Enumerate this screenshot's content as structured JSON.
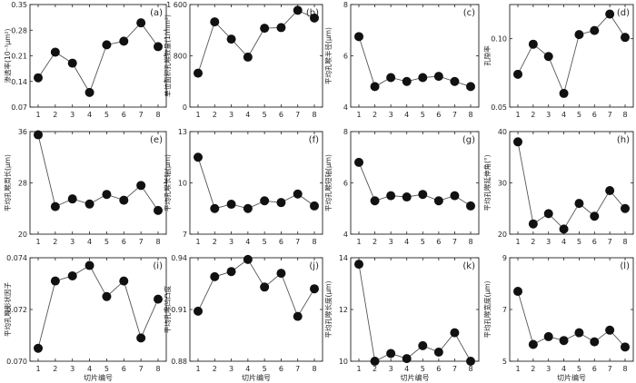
{
  "chart_data": [
    {
      "type": "line",
      "panel": "(a)",
      "ylabel": "渗透率(10⁻³μm²)",
      "xlabel": "切片编号",
      "x": [
        1,
        2,
        3,
        4,
        5,
        6,
        7,
        8
      ],
      "values": [
        0.15,
        0.22,
        0.19,
        0.11,
        0.24,
        0.25,
        0.3,
        0.235
      ],
      "ylim": [
        0.07,
        0.35
      ],
      "yticks": [
        "0.07",
        "0.14",
        "0.21",
        "0.28",
        "0.35"
      ],
      "ytick_values": [
        0.07,
        0.14,
        0.21,
        0.28,
        0.35
      ]
    },
    {
      "type": "line",
      "panel": "(b)",
      "ylabel": "单位面积孔喉数量(1/mm²)",
      "xlabel": "切片编号",
      "x": [
        1,
        2,
        3,
        4,
        5,
        6,
        7,
        8
      ],
      "values": [
        530,
        1330,
        1060,
        780,
        1230,
        1240,
        1510,
        1390
      ],
      "ylim": [
        0,
        1600
      ],
      "yticks": [
        "0",
        "800",
        "1 600"
      ],
      "ytick_values": [
        0,
        800,
        1600
      ]
    },
    {
      "type": "line",
      "panel": "(c)",
      "ylabel": "平均孔喉半径(μm)",
      "xlabel": "切片编号",
      "x": [
        1,
        2,
        3,
        4,
        5,
        6,
        7,
        8
      ],
      "values": [
        6.75,
        4.8,
        5.15,
        5.0,
        5.15,
        5.2,
        5.0,
        4.8
      ],
      "ylim": [
        4,
        8
      ],
      "yticks": [
        "4",
        "6",
        "8"
      ],
      "ytick_values": [
        4,
        6,
        8
      ]
    },
    {
      "type": "line",
      "panel": "(d)",
      "ylabel": "孔隙率",
      "xlabel": "切片编号",
      "x": [
        1,
        2,
        3,
        4,
        5,
        6,
        7,
        8
      ],
      "values": [
        0.074,
        0.096,
        0.087,
        0.06,
        0.103,
        0.106,
        0.118,
        0.101
      ],
      "ylim": [
        0.05,
        0.125
      ],
      "yticks": [
        "0.05",
        "0.10"
      ],
      "ytick_values": [
        0.05,
        0.1
      ]
    },
    {
      "type": "line",
      "panel": "(e)",
      "ylabel": "平均孔喉周长(μm)",
      "xlabel": "切片编号",
      "x": [
        1,
        2,
        3,
        4,
        5,
        6,
        7,
        8
      ],
      "values": [
        35.5,
        24.3,
        25.5,
        24.7,
        26.2,
        25.3,
        27.6,
        23.7
      ],
      "ylim": [
        20,
        36
      ],
      "yticks": [
        "20",
        "28",
        "36"
      ],
      "ytick_values": [
        20,
        28,
        36
      ]
    },
    {
      "type": "line",
      "panel": "(f)",
      "ylabel": "平均孔喉长轴(μm)",
      "xlabel": "切片编号",
      "x": [
        1,
        2,
        3,
        4,
        5,
        6,
        7,
        8
      ],
      "values": [
        11.5,
        8.5,
        8.75,
        8.5,
        8.95,
        8.85,
        9.35,
        8.65
      ],
      "ylim": [
        7,
        13
      ],
      "yticks": [
        "7",
        "10",
        "13"
      ],
      "ytick_values": [
        7,
        10,
        13
      ]
    },
    {
      "type": "line",
      "panel": "(g)",
      "ylabel": "平均孔喉短轴(μm)",
      "xlabel": "切片编号",
      "x": [
        1,
        2,
        3,
        4,
        5,
        6,
        7,
        8
      ],
      "values": [
        6.8,
        5.3,
        5.5,
        5.45,
        5.55,
        5.3,
        5.5,
        5.1
      ],
      "ylim": [
        4,
        8
      ],
      "yticks": [
        "4",
        "6",
        "8"
      ],
      "ytick_values": [
        4,
        6,
        8
      ]
    },
    {
      "type": "line",
      "panel": "(h)",
      "ylabel": "平均孔喉延伸角(°)",
      "xlabel": "切片编号",
      "x": [
        1,
        2,
        3,
        4,
        5,
        6,
        7,
        8
      ],
      "values": [
        38,
        22,
        24,
        21,
        26,
        23.5,
        28.5,
        25
      ],
      "ylim": [
        20,
        40
      ],
      "yticks": [
        "20",
        "30",
        "40"
      ],
      "ytick_values": [
        20,
        30,
        40
      ]
    },
    {
      "type": "line",
      "panel": "(i)",
      "ylabel": "平均孔喉形状因子",
      "xlabel": "切片编号",
      "x": [
        1,
        2,
        3,
        4,
        5,
        6,
        7,
        8
      ],
      "values": [
        0.0705,
        0.0731,
        0.0733,
        0.0737,
        0.0725,
        0.0731,
        0.0709,
        0.0724
      ],
      "ylim": [
        0.07,
        0.074
      ],
      "yticks": [
        "0.070",
        "0.072",
        "0.074"
      ],
      "ytick_values": [
        0.07,
        0.072,
        0.074
      ]
    },
    {
      "type": "line",
      "panel": "(j)",
      "ylabel": "平均孔喉凹凸度",
      "xlabel": "切片编号",
      "x": [
        1,
        2,
        3,
        4,
        5,
        6,
        7,
        8
      ],
      "values": [
        0.909,
        0.929,
        0.932,
        0.939,
        0.923,
        0.931,
        0.906,
        0.922
      ],
      "ylim": [
        0.88,
        0.94
      ],
      "yticks": [
        "0.88",
        "0.91",
        "0.94"
      ],
      "ytick_values": [
        0.88,
        0.91,
        0.94
      ]
    },
    {
      "type": "line",
      "panel": "(k)",
      "ylabel": "平均孔喉长度(μm)",
      "xlabel": "切片编号",
      "x": [
        1,
        2,
        3,
        4,
        5,
        6,
        7,
        8
      ],
      "values": [
        13.75,
        10.0,
        10.3,
        10.1,
        10.6,
        10.35,
        11.1,
        10.0
      ],
      "ylim": [
        10,
        14
      ],
      "yticks": [
        "10",
        "12",
        "14"
      ],
      "ytick_values": [
        10,
        12,
        14
      ]
    },
    {
      "type": "line",
      "panel": "(l)",
      "ylabel": "平均孔喉宽度(μm)",
      "xlabel": "切片编号",
      "x": [
        1,
        2,
        3,
        4,
        5,
        6,
        7,
        8
      ],
      "values": [
        7.7,
        5.65,
        5.95,
        5.8,
        6.1,
        5.75,
        6.2,
        5.55
      ],
      "ylim": [
        5,
        9
      ],
      "yticks": [
        "5",
        "7",
        "9"
      ],
      "ytick_values": [
        5,
        7,
        9
      ]
    }
  ],
  "style": {
    "axis_color": "#231f20",
    "line_color": "#555555",
    "marker_color": "#111111"
  }
}
